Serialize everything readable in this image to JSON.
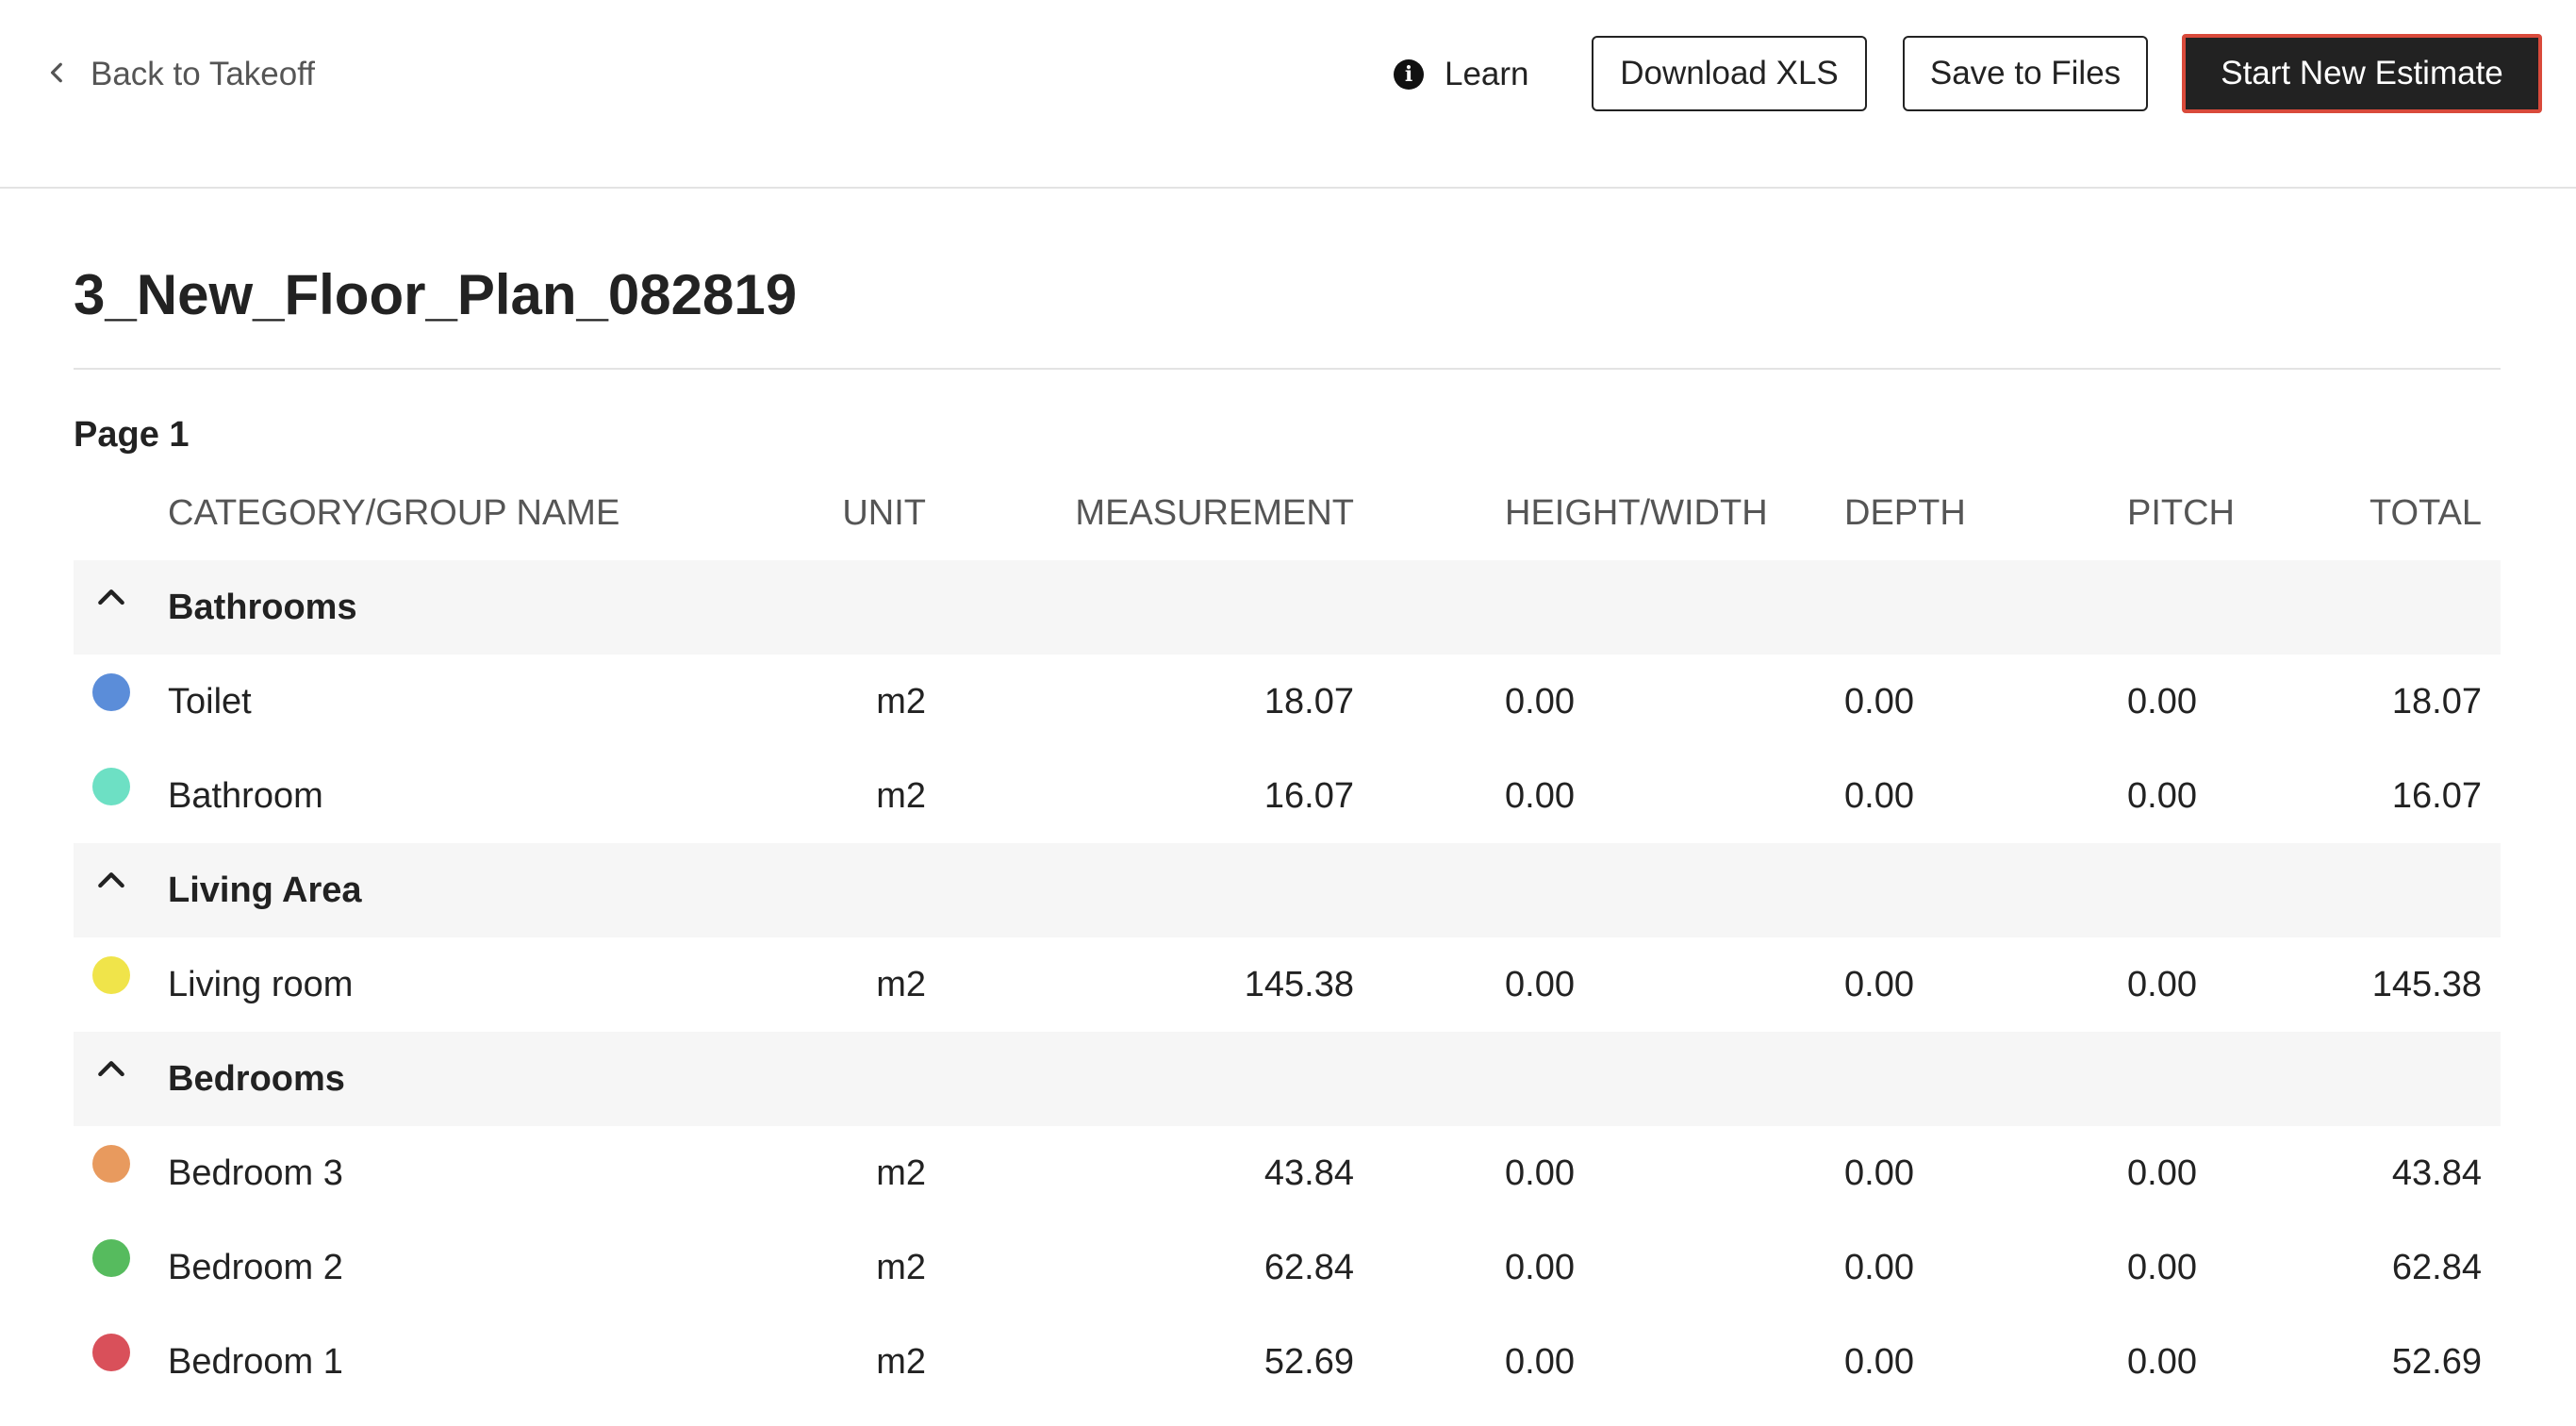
{
  "header": {
    "back_label": "Back to Takeoff",
    "learn_label": "Learn",
    "download_label": "Download XLS",
    "save_label": "Save to Files",
    "start_label": "Start New Estimate"
  },
  "document": {
    "title": "3_New_Floor_Plan_082819",
    "page_label": "Page 1"
  },
  "table": {
    "columns": {
      "name": "CATEGORY/GROUP NAME",
      "unit": "UNIT",
      "measurement": "MEASUREMENT",
      "height_width": "HEIGHT/WIDTH",
      "depth": "DEPTH",
      "pitch": "PITCH",
      "total": "TOTAL"
    },
    "groups": [
      {
        "name": "Bathrooms",
        "items": [
          {
            "name": "Toilet",
            "color": "#5b8dd9",
            "unit": "m2",
            "measurement": "18.07",
            "height_width": "0.00",
            "depth": "0.00",
            "pitch": "0.00",
            "total": "18.07"
          },
          {
            "name": "Bathroom",
            "color": "#6de0c4",
            "unit": "m2",
            "measurement": "16.07",
            "height_width": "0.00",
            "depth": "0.00",
            "pitch": "0.00",
            "total": "16.07"
          }
        ]
      },
      {
        "name": "Living Area",
        "items": [
          {
            "name": "Living room",
            "color": "#f0e44a",
            "unit": "m2",
            "measurement": "145.38",
            "height_width": "0.00",
            "depth": "0.00",
            "pitch": "0.00",
            "total": "145.38"
          }
        ]
      },
      {
        "name": "Bedrooms",
        "items": [
          {
            "name": "Bedroom 3",
            "color": "#e89a5e",
            "unit": "m2",
            "measurement": "43.84",
            "height_width": "0.00",
            "depth": "0.00",
            "pitch": "0.00",
            "total": "43.84"
          },
          {
            "name": "Bedroom 2",
            "color": "#56bb5e",
            "unit": "m2",
            "measurement": "62.84",
            "height_width": "0.00",
            "depth": "0.00",
            "pitch": "0.00",
            "total": "62.84"
          },
          {
            "name": "Bedroom 1",
            "color": "#d9505a",
            "unit": "m2",
            "measurement": "52.69",
            "height_width": "0.00",
            "depth": "0.00",
            "pitch": "0.00",
            "total": "52.69"
          }
        ]
      }
    ]
  },
  "icons": {
    "back": "chevron-left-icon",
    "learn": "info-icon",
    "group_toggle": "chevron-up-icon"
  }
}
